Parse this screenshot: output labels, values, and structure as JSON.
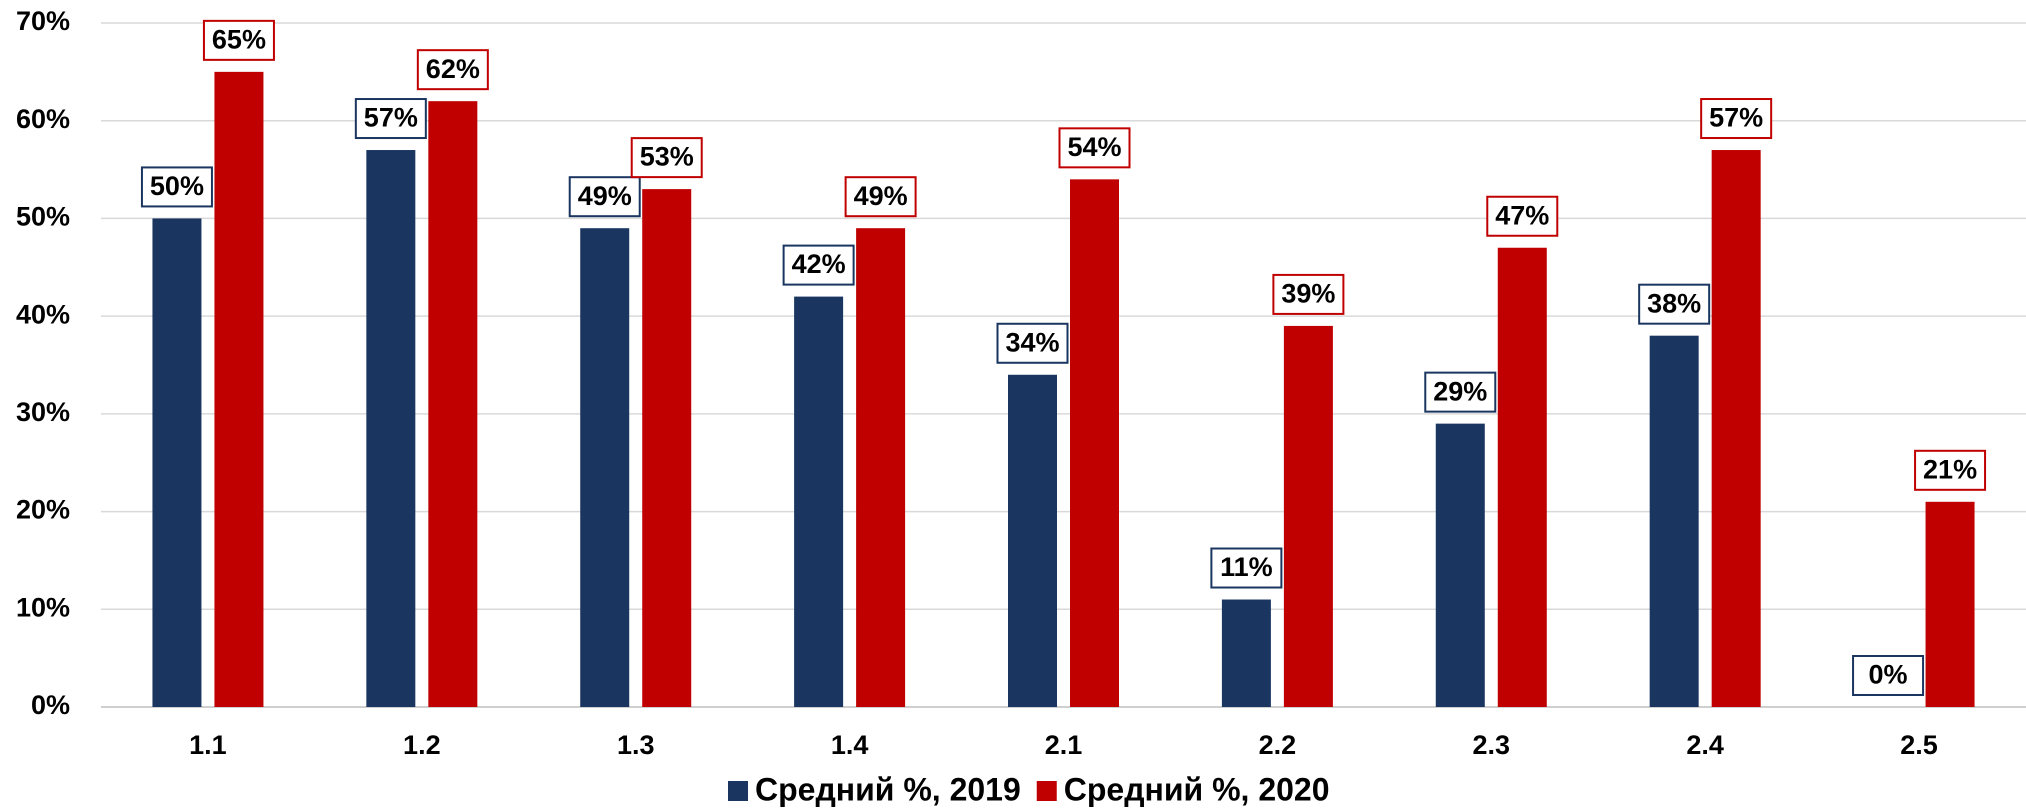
{
  "chart_data": {
    "type": "bar",
    "categories": [
      "1.1",
      "1.2",
      "1.3",
      "1.4",
      "2.1",
      "2.2",
      "2.3",
      "2.4",
      "2.5"
    ],
    "series": [
      {
        "name": "Средний %, 2019",
        "color": "#1a3660",
        "values": [
          50,
          57,
          49,
          42,
          34,
          11,
          29,
          38,
          0
        ],
        "value_labels": [
          "50%",
          "57%",
          "49%",
          "42%",
          "34%",
          "11%",
          "29%",
          "38%",
          "0%"
        ]
      },
      {
        "name": "Средний %, 2020",
        "color": "#c00000",
        "values": [
          65,
          62,
          53,
          49,
          54,
          39,
          47,
          57,
          21
        ],
        "value_labels": [
          "65%",
          "62%",
          "53%",
          "49%",
          "54%",
          "39%",
          "47%",
          "57%",
          "21%"
        ]
      }
    ],
    "ylim": [
      0,
      70
    ],
    "yticks": [
      {
        "value": 0,
        "label": "0%"
      },
      {
        "value": 10,
        "label": "10%"
      },
      {
        "value": 20,
        "label": "20%"
      },
      {
        "value": 30,
        "label": "30%"
      },
      {
        "value": 40,
        "label": "40%"
      },
      {
        "value": 50,
        "label": "50%"
      },
      {
        "value": 60,
        "label": "60%"
      },
      {
        "value": 70,
        "label": "70%"
      }
    ],
    "grid": true,
    "legend": "bottom"
  }
}
